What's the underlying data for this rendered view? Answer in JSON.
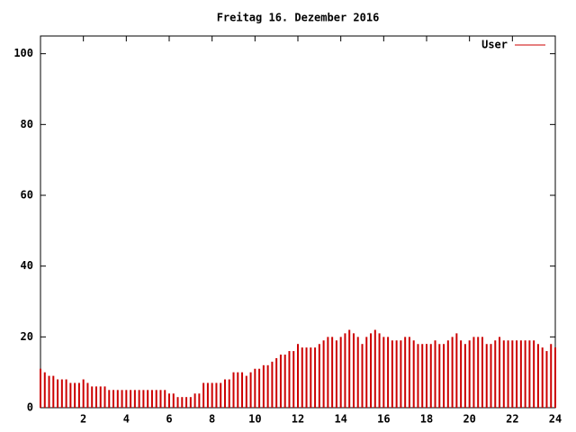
{
  "chart_data": {
    "type": "impulses",
    "title": "Freitag 16. Dezember 2016",
    "xlim": [
      0,
      24
    ],
    "xticks": [
      2,
      4,
      6,
      8,
      10,
      12,
      14,
      16,
      18,
      20,
      22,
      24
    ],
    "ylim": [
      0,
      105
    ],
    "yticks": [
      0,
      20,
      40,
      60,
      80,
      100
    ],
    "legend": "top-right",
    "x": [
      0,
      0.2,
      0.4,
      0.6,
      0.8,
      1,
      1.2,
      1.4,
      1.6,
      1.8,
      2,
      2.2,
      2.4,
      2.6,
      2.8,
      3,
      3.2,
      3.4,
      3.6,
      3.8,
      4,
      4.2,
      4.4,
      4.6,
      4.8,
      5,
      5.2,
      5.4,
      5.6,
      5.8,
      6,
      6.2,
      6.4,
      6.6,
      6.8,
      7,
      7.2,
      7.4,
      7.6,
      7.8,
      8,
      8.2,
      8.4,
      8.6,
      8.8,
      9,
      9.2,
      9.4,
      9.6,
      9.8,
      10,
      10.2,
      10.4,
      10.6,
      10.8,
      11,
      11.2,
      11.4,
      11.6,
      11.8,
      12,
      12.2,
      12.4,
      12.6,
      12.8,
      13,
      13.2,
      13.4,
      13.6,
      13.8,
      14,
      14.2,
      14.4,
      14.6,
      14.8,
      15,
      15.2,
      15.4,
      15.6,
      15.8,
      16,
      16.2,
      16.4,
      16.6,
      16.8,
      17,
      17.2,
      17.4,
      17.6,
      17.8,
      18,
      18.2,
      18.4,
      18.6,
      18.8,
      19,
      19.2,
      19.4,
      19.6,
      19.8,
      20,
      20.2,
      20.4,
      20.6,
      20.8,
      21,
      21.2,
      21.4,
      21.6,
      21.8,
      22,
      22.2,
      22.4,
      22.6,
      22.8,
      23,
      23.2,
      23.4,
      23.6,
      23.8,
      24
    ],
    "series": [
      {
        "name": "User",
        "color": "#cc0000",
        "values": [
          11,
          10,
          9,
          9,
          8,
          8,
          8,
          7,
          7,
          7,
          8,
          7,
          6,
          6,
          6,
          6,
          5,
          5,
          5,
          5,
          5,
          5,
          5,
          5,
          5,
          5,
          5,
          5,
          5,
          5,
          4,
          4,
          3,
          3,
          3,
          3,
          4,
          4,
          7,
          7,
          7,
          7,
          7,
          8,
          8,
          10,
          10,
          10,
          9,
          10,
          11,
          11,
          12,
          12,
          13,
          14,
          15,
          15,
          16,
          16,
          18,
          17,
          17,
          17,
          17,
          18,
          19,
          20,
          20,
          19,
          20,
          21,
          22,
          21,
          20,
          18,
          20,
          21,
          22,
          21,
          20,
          20,
          19,
          19,
          19,
          20,
          20,
          19,
          18,
          18,
          18,
          18,
          19,
          18,
          18,
          19,
          20,
          21,
          19,
          18,
          19,
          20,
          20,
          20,
          18,
          18,
          19,
          20,
          19,
          19,
          19,
          19,
          19,
          19,
          19,
          19,
          18,
          17,
          16,
          18,
          17
        ]
      }
    ]
  }
}
